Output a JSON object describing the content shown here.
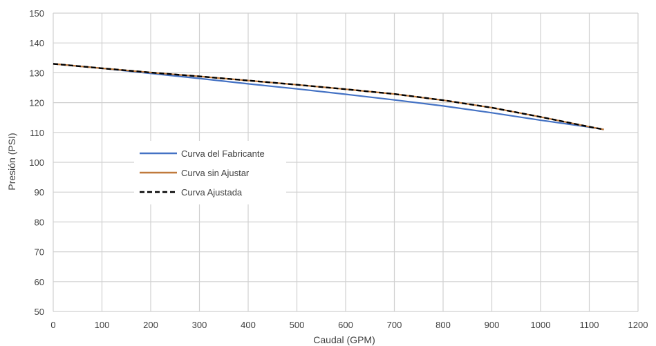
{
  "chart_data": {
    "type": "line",
    "title": "",
    "xlabel": "Caudal (GPM)",
    "ylabel": "Presión (PSI)",
    "xlim": [
      0,
      1200
    ],
    "ylim": [
      50,
      150
    ],
    "xticks": [
      0,
      100,
      200,
      300,
      400,
      500,
      600,
      700,
      800,
      900,
      1000,
      1100,
      1200
    ],
    "yticks": [
      50,
      60,
      70,
      80,
      90,
      100,
      110,
      120,
      130,
      140,
      150
    ],
    "grid": true,
    "legend_position": "left-center",
    "series": [
      {
        "name": "Curva del Fabricante",
        "color": "#4472c4",
        "dash": "solid",
        "x": [
          0,
          100,
          200,
          300,
          400,
          500,
          600,
          700,
          800,
          900,
          1000,
          1100,
          1130
        ],
        "y": [
          133,
          131.5,
          129.8,
          128.1,
          126.3,
          124.6,
          122.8,
          120.9,
          118.9,
          116.6,
          114.1,
          111.8,
          111
        ]
      },
      {
        "name": "Curva sin Ajustar",
        "color": "#c07a3c",
        "dash": "solid",
        "x": [
          0,
          100,
          200,
          300,
          400,
          500,
          600,
          700,
          800,
          900,
          1000,
          1100,
          1130
        ],
        "y": [
          133,
          131.5,
          130.1,
          128.8,
          127.4,
          126,
          124.5,
          122.9,
          120.8,
          118.3,
          115.2,
          111.9,
          111
        ]
      },
      {
        "name": "Curva Ajustada",
        "color": "#000000",
        "dash": "dashed",
        "x": [
          0,
          100,
          200,
          300,
          400,
          500,
          600,
          700,
          800,
          900,
          1000,
          1100,
          1130
        ],
        "y": [
          133,
          131.5,
          130.1,
          128.8,
          127.4,
          126,
          124.5,
          122.9,
          120.8,
          118.3,
          115.2,
          111.9,
          111
        ]
      }
    ]
  }
}
